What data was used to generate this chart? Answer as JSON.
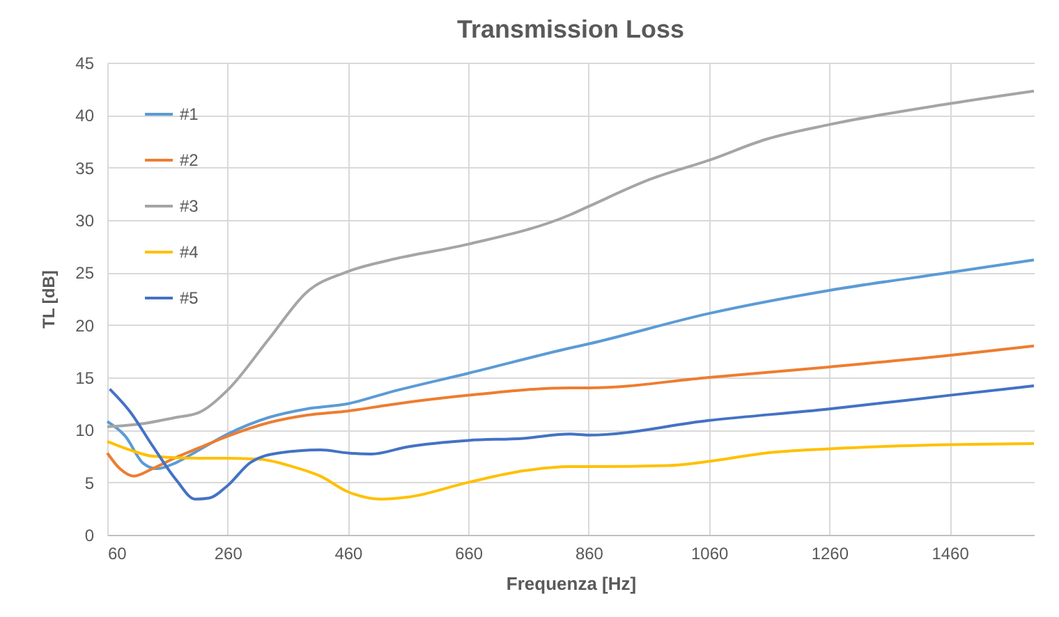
{
  "chart_data": {
    "type": "line",
    "title": "Transmission Loss",
    "xlabel": "Frequenza [Hz]",
    "ylabel": "TL [dB]",
    "xlim": [
      60,
      1600
    ],
    "xticks": [
      60,
      260,
      460,
      660,
      860,
      1060,
      1260,
      1460
    ],
    "ylim": [
      0,
      45
    ],
    "yticks": [
      0,
      5,
      10,
      15,
      20,
      25,
      30,
      35,
      40,
      45
    ],
    "grid": true,
    "legend": "top left",
    "line_style": "solid",
    "marker": "none",
    "series": [
      {
        "name": "#1",
        "color": "#5b9bd5",
        "x": [
          60,
          90,
          120,
          143,
          175,
          213,
          260,
          329,
          391,
          460,
          530,
          660,
          829,
          860,
          1060,
          1260,
          1460,
          1600
        ],
        "values": [
          10.8,
          9.4,
          6.8,
          6.3,
          6.9,
          8.1,
          9.6,
          11.2,
          12.0,
          12.5,
          13.6,
          15.4,
          17.8,
          18.2,
          21.1,
          23.3,
          25.0,
          26.2
        ]
      },
      {
        "name": "#2",
        "color": "#ed7d31",
        "x": [
          60,
          81,
          104,
          135,
          175,
          213,
          260,
          329,
          391,
          460,
          530,
          660,
          829,
          860,
          1060,
          1260,
          1460,
          1600
        ],
        "values": [
          7.8,
          6.3,
          5.6,
          6.3,
          7.4,
          8.3,
          9.4,
          10.7,
          11.4,
          11.8,
          12.4,
          13.3,
          14.0,
          14.0,
          15.0,
          16.0,
          17.1,
          18.0
        ]
      },
      {
        "name": "#3",
        "color": "#a5a5a5",
        "x": [
          60,
          120,
          175,
          210,
          260,
          329,
          391,
          460,
          530,
          660,
          829,
          860,
          963,
          1060,
          1155,
          1260,
          1460,
          1600
        ],
        "values": [
          10.3,
          10.6,
          11.2,
          11.6,
          13.8,
          18.7,
          23.1,
          25.1,
          26.2,
          27.7,
          30.5,
          31.3,
          33.9,
          35.7,
          37.7,
          39.1,
          41.1,
          42.3
        ]
      },
      {
        "name": "#4",
        "color": "#ffc000",
        "x": [
          60,
          97,
          135,
          213,
          260,
          314,
          368,
          414,
          460,
          514,
          560,
          660,
          752,
          829,
          860,
          993,
          1060,
          1155,
          1260,
          1460,
          1600
        ],
        "values": [
          8.9,
          8.1,
          7.5,
          7.3,
          7.3,
          7.2,
          6.5,
          5.6,
          4.1,
          3.4,
          3.6,
          5.0,
          6.1,
          6.5,
          6.5,
          6.6,
          7.0,
          7.8,
          8.2,
          8.6,
          8.7
        ]
      },
      {
        "name": "#5",
        "color": "#4472c4",
        "x": [
          64,
          97,
          135,
          175,
          206,
          229,
          260,
          298,
          345,
          414,
          460,
          499,
          560,
          660,
          752,
          829,
          860,
          1060,
          1260,
          1460,
          1600
        ],
        "values": [
          13.9,
          11.8,
          8.5,
          5.2,
          3.4,
          3.5,
          4.7,
          6.9,
          7.8,
          8.1,
          7.8,
          7.7,
          8.4,
          9.0,
          9.2,
          9.6,
          9.5,
          10.9,
          12.0,
          13.3,
          14.2
        ]
      }
    ]
  }
}
